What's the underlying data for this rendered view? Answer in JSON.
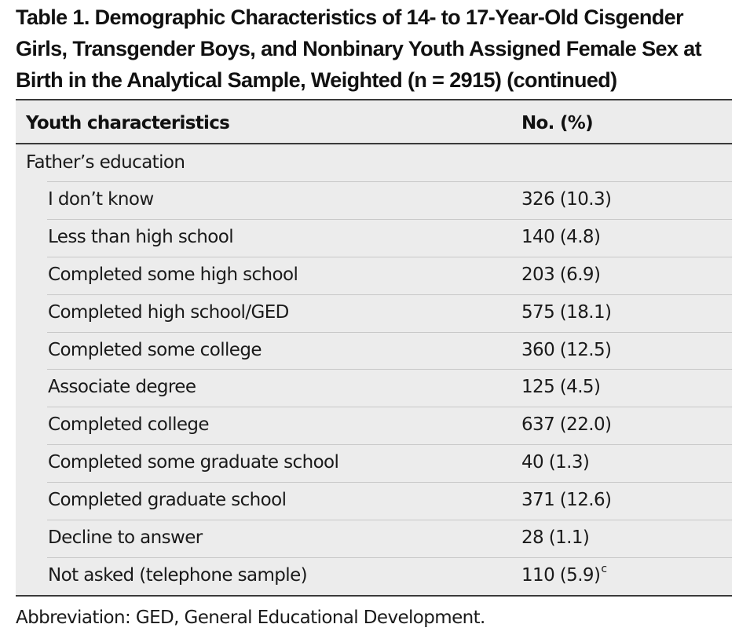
{
  "table": {
    "title": "Table 1. Demographic Characteristics of 14- to 17-Year-Old Cisgender Girls, Transgender Boys, and Nonbinary Youth Assigned Female Sex at Birth in the Analytical Sample, Weighted (n = 2915) (continued)",
    "columns": [
      "Youth characteristics",
      "No. (%)"
    ],
    "section_label": "Father’s education",
    "rows": [
      {
        "label": "I don’t know",
        "value": "326 (10.3)",
        "note": ""
      },
      {
        "label": "Less than high school",
        "value": "140 (4.8)",
        "note": ""
      },
      {
        "label": "Completed some high school",
        "value": "203 (6.9)",
        "note": ""
      },
      {
        "label": "Completed high school/GED",
        "value": "575 (18.1)",
        "note": ""
      },
      {
        "label": "Completed some college",
        "value": "360 (12.5)",
        "note": ""
      },
      {
        "label": "Associate degree",
        "value": "125 (4.5)",
        "note": ""
      },
      {
        "label": "Completed college",
        "value": "637 (22.0)",
        "note": ""
      },
      {
        "label": "Completed some graduate school",
        "value": "40 (1.3)",
        "note": ""
      },
      {
        "label": "Completed graduate school",
        "value": "371 (12.6)",
        "note": ""
      },
      {
        "label": "Decline to answer",
        "value": "28 (1.1)",
        "note": ""
      },
      {
        "label": "Not asked (telephone sample)",
        "value": "110 (5.9)",
        "note": "c"
      }
    ],
    "footnote": "Abbreviation: GED, General Educational Development."
  },
  "colors": {
    "header_background": "#ececec",
    "rule_dark": "#3a3a3a",
    "rule_light": "#c8c8c8",
    "text": "#1a1a1a"
  }
}
